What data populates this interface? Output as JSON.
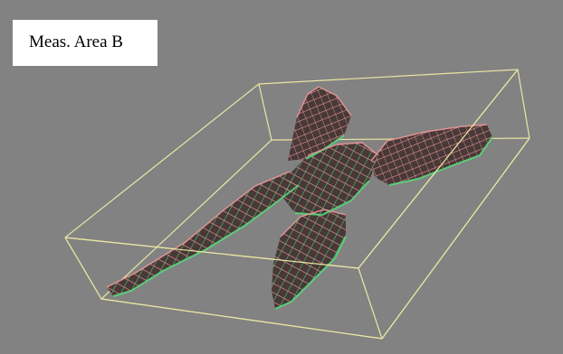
{
  "label": {
    "text": "Meas. Area B"
  },
  "colors": {
    "background": "#828282",
    "label_background": "#ffffff",
    "bounding_box": "#e8e6a2",
    "mesh_red": "#ee9a9a",
    "mesh_green": "#58d87c",
    "surface_dark": "#3e2c2c"
  }
}
